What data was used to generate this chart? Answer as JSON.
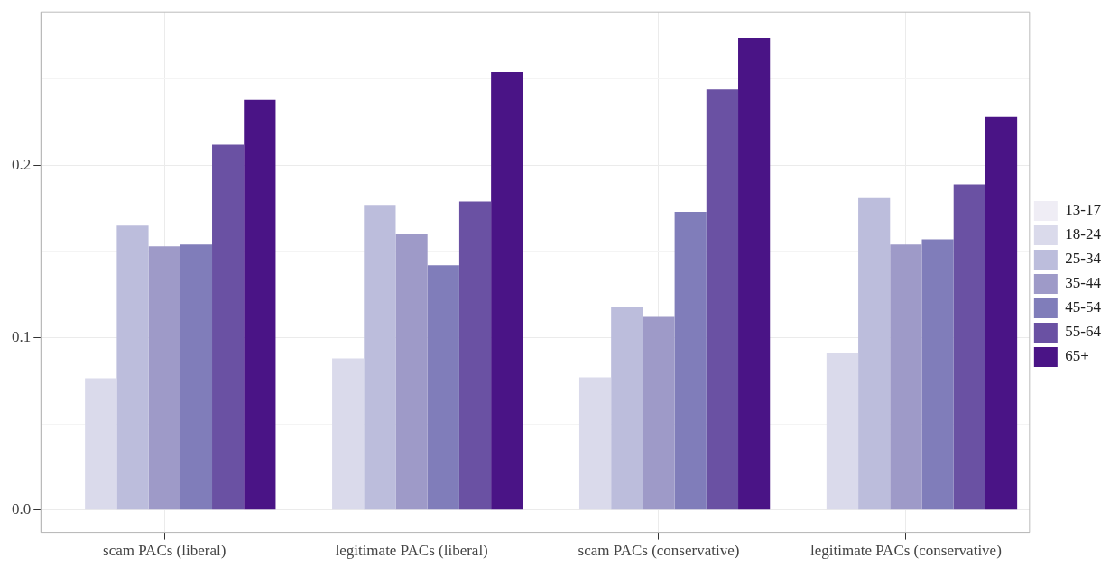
{
  "chart_data": {
    "type": "bar",
    "categories": [
      "scam PACs (liberal)",
      "legitimate PACs (liberal)",
      "scam PACs (conservative)",
      "legitimate PACs (conservative)"
    ],
    "series": [
      {
        "name": "13-17",
        "color": "#efedf5",
        "values": [
          0,
          0,
          0,
          null
        ]
      },
      {
        "name": "18-24",
        "color": "#dadaeb",
        "values": [
          0.0765,
          0.088,
          0.077,
          0.091
        ]
      },
      {
        "name": "25-34",
        "color": "#bcbddc",
        "values": [
          0.165,
          0.177,
          0.118,
          0.181
        ]
      },
      {
        "name": "35-44",
        "color": "#9e9ac8",
        "values": [
          0.153,
          0.16,
          0.112,
          0.154
        ]
      },
      {
        "name": "45-54",
        "color": "#807dba",
        "values": [
          0.154,
          0.142,
          0.173,
          0.157
        ]
      },
      {
        "name": "55-64",
        "color": "#6a51a3",
        "values": [
          0.212,
          0.179,
          0.244,
          0.189
        ]
      },
      {
        "name": "65+",
        "color": "#4a1486",
        "values": [
          0.238,
          0.254,
          0.274,
          0.228
        ]
      }
    ],
    "ylim": [
      -0.013,
      0.289
    ],
    "yticks": [
      {
        "value": 0,
        "label": "0.0"
      },
      {
        "value": 0.05,
        "label": null
      },
      {
        "value": 0.1,
        "label": "0.1"
      },
      {
        "value": 0.15,
        "label": null
      },
      {
        "value": 0.2,
        "label": "0.2"
      },
      {
        "value": 0.25,
        "label": null
      }
    ],
    "grid": true,
    "legend": "right"
  }
}
